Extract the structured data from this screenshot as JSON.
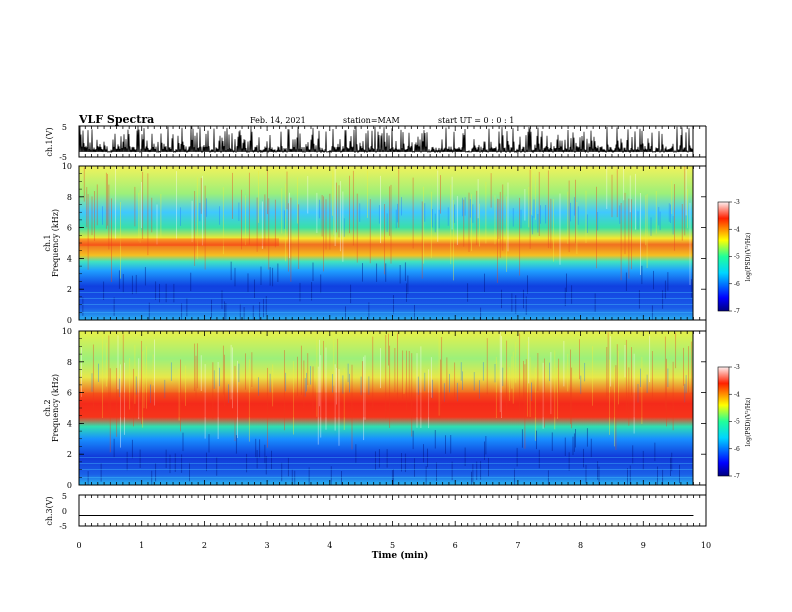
{
  "header": {
    "title": "VLF Spectra",
    "date": "Feb. 14, 2021",
    "station": "station=MAM",
    "start": "start  UT =   0 : 0  : 1"
  },
  "chart_data": [
    {
      "type": "line",
      "name": "ch1-waveform",
      "ylabel": "ch.1(V)",
      "ylim": [
        -5,
        5
      ],
      "yticks": [
        "5",
        "-5"
      ],
      "xlim": [
        0,
        10
      ],
      "note_values": "dense burst/spike waveform across full record"
    },
    {
      "type": "heatmap",
      "name": "ch1-spectrogram",
      "ylabel_top": "ch.1",
      "ylabel": "Frequency  (kHz)",
      "ylim": [
        0,
        10
      ],
      "yticks": [
        "0",
        "2",
        "4",
        "6",
        "8",
        "10"
      ],
      "xlim": [
        0,
        9.8
      ],
      "colorbar": {
        "label": "log(PSD)(V²/Hz)",
        "range": [
          -7,
          -3
        ],
        "ticks": [
          "-3",
          "-4",
          "-5",
          "-6",
          "-7"
        ]
      },
      "bands": [
        {
          "f_low": 4.0,
          "f_high": 5.0,
          "level": -4.2
        },
        {
          "f_low": 0.0,
          "f_high": 3.5,
          "level": -6.3
        },
        {
          "f_low": 5.0,
          "f_high": 10.0,
          "level": -4.8
        }
      ]
    },
    {
      "type": "heatmap",
      "name": "ch2-spectrogram",
      "ylabel_top": "ch.2",
      "ylabel": "Frequency  (kHz)",
      "ylim": [
        0,
        10
      ],
      "yticks": [
        "0",
        "2",
        "4",
        "6",
        "8",
        "10"
      ],
      "xlim": [
        0,
        9.8
      ],
      "colorbar": {
        "label": "log(PSD)(V²/Hz)",
        "range": [
          -7,
          -3
        ],
        "ticks": [
          "-3",
          "-4",
          "-5",
          "-6",
          "-7"
        ]
      },
      "bands": [
        {
          "f_low": 3.8,
          "f_high": 5.5,
          "level": -3.9
        },
        {
          "f_low": 0.0,
          "f_high": 3.3,
          "level": -6.3
        },
        {
          "f_low": 5.5,
          "f_high": 10.0,
          "level": -4.6
        }
      ]
    },
    {
      "type": "line",
      "name": "ch3-waveform",
      "ylabel": "ch.3(V)",
      "ylim": [
        -5,
        5
      ],
      "yticks": [
        "5",
        "0",
        "-5"
      ],
      "x": [
        0,
        9.8
      ],
      "y": [
        -1.6,
        -1.6
      ]
    }
  ],
  "xaxis": {
    "label": "Time  (min)",
    "ticks": [
      "0",
      "1",
      "2",
      "3",
      "4",
      "5",
      "6",
      "7",
      "8",
      "9",
      "10"
    ],
    "range": [
      0,
      10
    ]
  }
}
